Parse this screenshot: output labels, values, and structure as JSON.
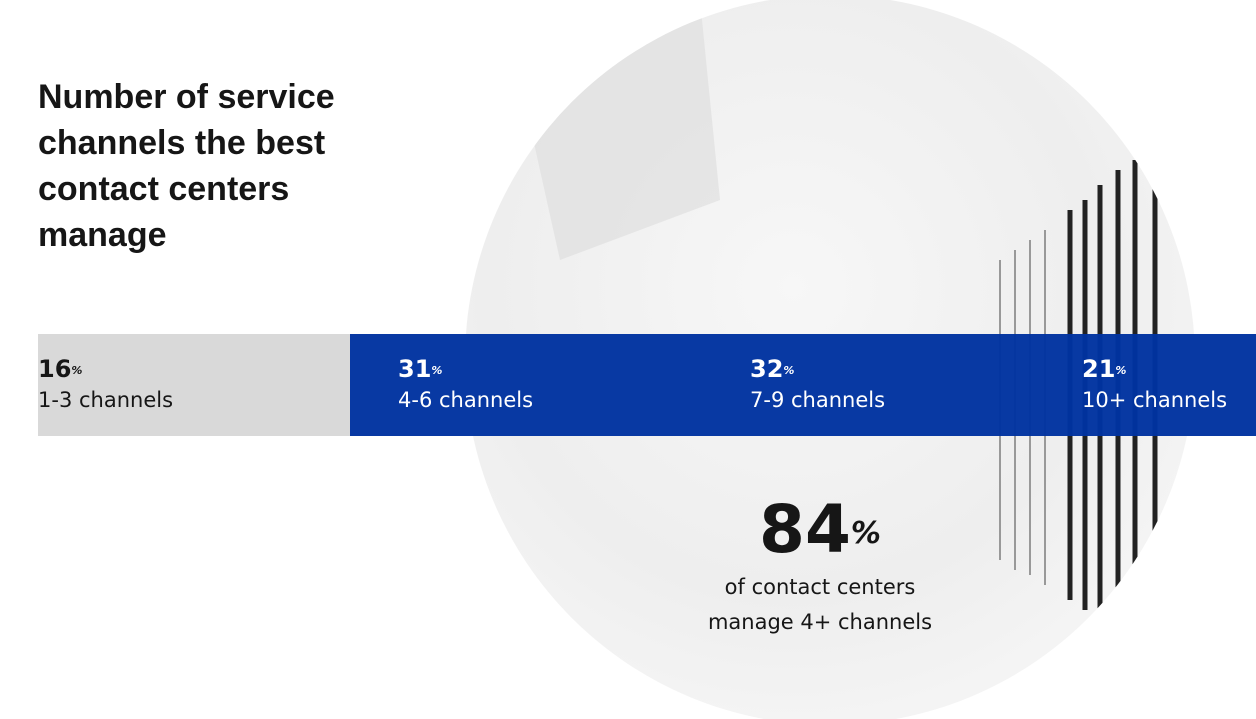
{
  "header": {
    "title": "Number of service channels the best contact centers manage"
  },
  "segments": [
    {
      "value": 16,
      "unit": "%",
      "label": "1-3 channels"
    },
    {
      "value": 31,
      "unit": "%",
      "label": "4-6 channels"
    },
    {
      "value": 32,
      "unit": "%",
      "label": "7-9 channels"
    },
    {
      "value": 21,
      "unit": "%",
      "label": "10+ channels"
    }
  ],
  "callout": {
    "value": 84,
    "unit": "%",
    "text": "of contact centers manage 4+ channels"
  }
}
